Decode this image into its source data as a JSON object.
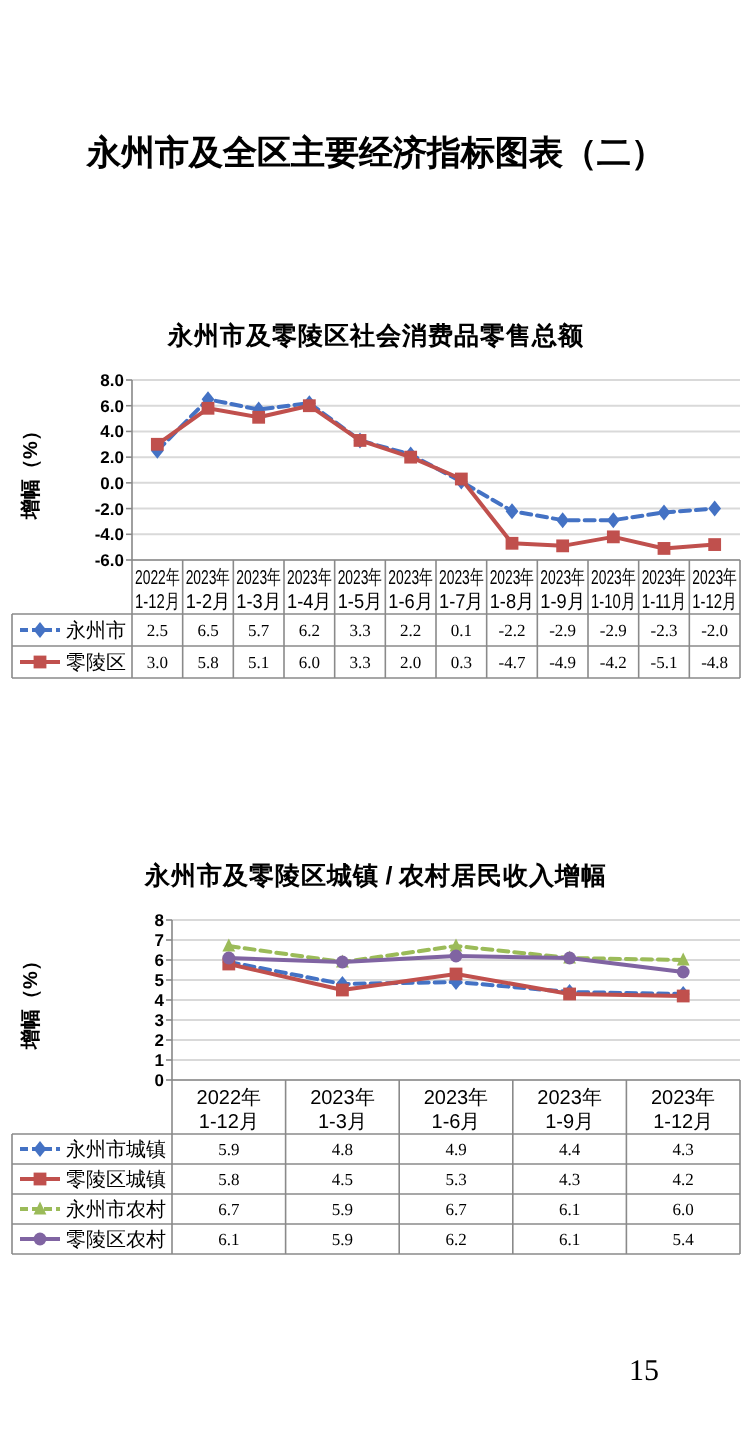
{
  "chart_data": [
    {
      "type": "line",
      "title": "永州市及零陵区社会消费品零售总额",
      "ylabel": "增幅（%）",
      "annotations": [
        "永州市及全区主要经济指标图表（二）"
      ],
      "categories": [
        "2022年1-12月",
        "2023年1-2月",
        "2023年1-3月",
        "2023年1-4月",
        "2023年1-5月",
        "2023年1-6月",
        "2023年1-7月",
        "2023年1-8月",
        "2023年1-9月",
        "2023年1-10月",
        "2023年1-11月",
        "2023年1-12月"
      ],
      "series": [
        {
          "name": "永州市",
          "color": "#4472c4",
          "line_style": "dashed",
          "marker": "diamond",
          "values": [
            2.5,
            6.5,
            5.7,
            6.2,
            3.3,
            2.2,
            0.1,
            -2.2,
            -2.9,
            -2.9,
            -2.3,
            -2.0
          ],
          "value_labels": [
            "2.5",
            "6.5",
            "5.7",
            "6.2",
            "3.3",
            "2.2",
            "0.1",
            "-2.2",
            "-2.9",
            "-2.9",
            "-2.3",
            "-2.0"
          ]
        },
        {
          "name": "零陵区",
          "color": "#c0504d",
          "line_style": "solid",
          "marker": "square",
          "values": [
            3.0,
            5.8,
            5.1,
            6.0,
            3.3,
            2.0,
            0.3,
            -4.7,
            -4.9,
            -4.2,
            -5.1,
            -4.8
          ],
          "value_labels": [
            "3.0",
            "5.8",
            "5.1",
            "6.0",
            "3.3",
            "2.0",
            "0.3",
            "-4.7",
            "-4.9",
            "-4.2",
            "-5.1",
            "-4.8"
          ]
        }
      ],
      "ylim": [
        -6,
        8
      ],
      "yticks": [
        {
          "value": -6,
          "label": "-6.0"
        },
        {
          "value": -4,
          "label": "-4.0"
        },
        {
          "value": -2,
          "label": "-2.0"
        },
        {
          "value": 0,
          "label": "0.0"
        },
        {
          "value": 2,
          "label": "2.0"
        },
        {
          "value": 4,
          "label": "4.0"
        },
        {
          "value": 6,
          "label": "6.0"
        },
        {
          "value": 8,
          "label": "8.0"
        }
      ],
      "grid": "y",
      "legend": "bottom"
    },
    {
      "type": "line",
      "title": "永州市及零陵区城镇 / 农村居民收入增幅",
      "ylabel": "增幅（%）",
      "annotations": [
        "15"
      ],
      "categories": [
        "2022年1-12月",
        "2023年1-3月",
        "2023年1-6月",
        "2023年1-9月",
        "2023年1-12月"
      ],
      "series": [
        {
          "name": "永州市城镇",
          "color": "#4472c4",
          "line_style": "dashed",
          "marker": "diamond",
          "values": [
            5.9,
            4.8,
            4.9,
            4.4,
            4.3
          ],
          "value_labels": [
            "5.9",
            "4.8",
            "4.9",
            "4.4",
            "4.3"
          ]
        },
        {
          "name": "零陵区城镇",
          "color": "#c0504d",
          "line_style": "solid",
          "marker": "square",
          "values": [
            5.8,
            4.5,
            5.3,
            4.3,
            4.2
          ],
          "value_labels": [
            "5.8",
            "4.5",
            "5.3",
            "4.3",
            "4.2"
          ]
        },
        {
          "name": "永州市农村",
          "color": "#9bbb59",
          "line_style": "dashed",
          "marker": "triangle",
          "values": [
            6.7,
            5.9,
            6.7,
            6.1,
            6.0
          ],
          "value_labels": [
            "6.7",
            "5.9",
            "6.7",
            "6.1",
            "6.0"
          ]
        },
        {
          "name": "零陵区农村",
          "color": "#8064a2",
          "line_style": "solid",
          "marker": "circle",
          "values": [
            6.1,
            5.9,
            6.2,
            6.1,
            5.4
          ],
          "value_labels": [
            "6.1",
            "5.9",
            "6.2",
            "6.1",
            "5.4"
          ]
        }
      ],
      "ylim": [
        0,
        8
      ],
      "yticks": [
        0,
        1,
        2,
        3,
        4,
        5,
        6,
        7,
        8
      ],
      "grid": "y",
      "legend": "bottom"
    }
  ]
}
